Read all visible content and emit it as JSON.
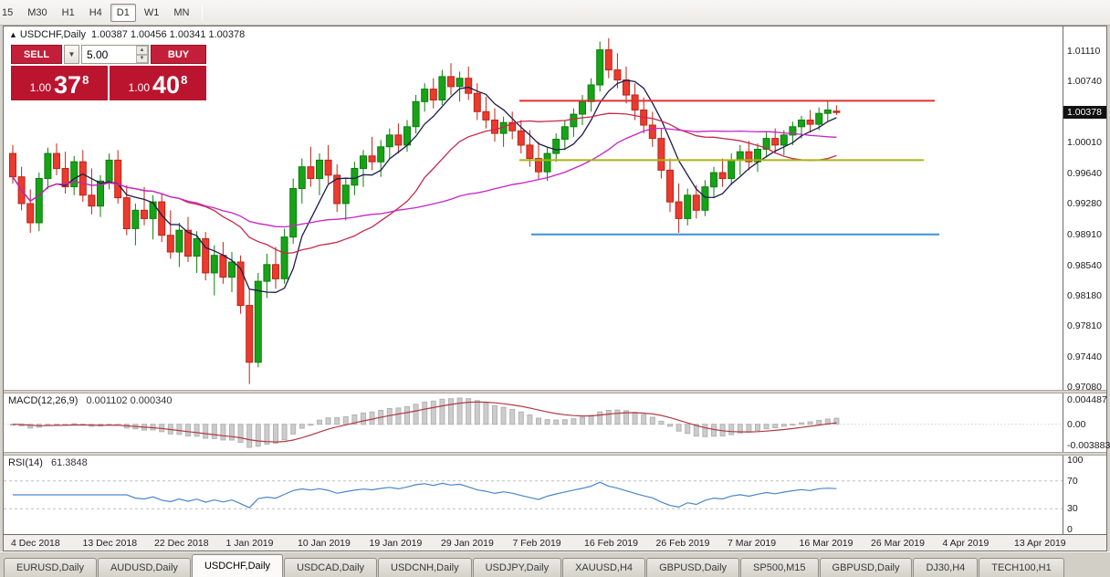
{
  "toolbar": {
    "periods": [
      {
        "label": "15",
        "active": false
      },
      {
        "label": "M30",
        "active": false
      },
      {
        "label": "H1",
        "active": false
      },
      {
        "label": "H4",
        "active": false
      },
      {
        "label": "D1",
        "active": true
      },
      {
        "label": "W1",
        "active": false
      },
      {
        "label": "MN",
        "active": false
      }
    ]
  },
  "chart": {
    "collapse_arrow": "▲",
    "symbol_title": "USDCHF,Daily",
    "ohlc_text": "1.00387 1.00456 1.00341 1.00378"
  },
  "trade_panel": {
    "sell_label": "SELL",
    "buy_label": "BUY",
    "volume": "5.00",
    "dropdown_icon": "▼",
    "spin_up": "▲",
    "spin_down": "▼",
    "button_color": "#c41f3a",
    "panel_color": "#bb142f",
    "bid": {
      "prefix": "1.00",
      "big": "37",
      "sup": "8",
      "value": "1.00378"
    },
    "ask": {
      "prefix": "1.00",
      "big": "40",
      "sup": "8",
      "value": "1.00408"
    }
  },
  "price_scale": {
    "labels": [
      "1.01110",
      "1.00740",
      "1.00370",
      "1.00010",
      "0.99640",
      "0.99280",
      "0.98910",
      "0.98540",
      "0.98180",
      "0.97810",
      "0.97440",
      "0.97080"
    ],
    "current": "1.00378",
    "current_value": 1.00378
  },
  "chart_data": {
    "type": "candlestick",
    "title": "USDCHF,Daily",
    "ohlc_display": {
      "open": "1.00387",
      "high": "1.00456",
      "low": "1.00341",
      "close": "1.00378"
    },
    "ylim": [
      0.9705,
      1.014
    ],
    "colors": {
      "up": "#17a317",
      "up_border": "#0d7e0d",
      "down": "#ea3b2e",
      "down_border": "#bc2418"
    },
    "candles": [
      [
        0.9988,
        0.9998,
        0.9952,
        0.996
      ],
      [
        0.996,
        0.9972,
        0.992,
        0.9928
      ],
      [
        0.9928,
        0.9945,
        0.9893,
        0.9905
      ],
      [
        0.9905,
        0.9965,
        0.9895,
        0.9958
      ],
      [
        0.9958,
        0.9995,
        0.9945,
        0.9988
      ],
      [
        0.9988,
        1.0,
        0.9962,
        0.997
      ],
      [
        0.997,
        0.999,
        0.994,
        0.9948
      ],
      [
        0.9948,
        0.9985,
        0.9938,
        0.9978
      ],
      [
        0.9978,
        0.9992,
        0.993,
        0.9938
      ],
      [
        0.9938,
        0.997,
        0.9915,
        0.9925
      ],
      [
        0.9925,
        0.9962,
        0.9912,
        0.9955
      ],
      [
        0.9955,
        0.9988,
        0.9945,
        0.998
      ],
      [
        0.998,
        0.9992,
        0.9928,
        0.9935
      ],
      [
        0.9935,
        0.995,
        0.989,
        0.9898
      ],
      [
        0.9898,
        0.9928,
        0.9878,
        0.992
      ],
      [
        0.992,
        0.9948,
        0.9902,
        0.991
      ],
      [
        0.991,
        0.9938,
        0.9885,
        0.993
      ],
      [
        0.993,
        0.994,
        0.9882,
        0.989
      ],
      [
        0.989,
        0.992,
        0.9862,
        0.987
      ],
      [
        0.987,
        0.9905,
        0.9852,
        0.9896
      ],
      [
        0.9896,
        0.9912,
        0.9858,
        0.9865
      ],
      [
        0.9865,
        0.9895,
        0.9845,
        0.9886
      ],
      [
        0.9886,
        0.9894,
        0.9836,
        0.9845
      ],
      [
        0.9845,
        0.9878,
        0.9818,
        0.9866
      ],
      [
        0.9866,
        0.9882,
        0.9832,
        0.984
      ],
      [
        0.984,
        0.987,
        0.9822,
        0.9858
      ],
      [
        0.9858,
        0.9866,
        0.9796,
        0.9806
      ],
      [
        0.9806,
        0.9825,
        0.9712,
        0.9738
      ],
      [
        0.9738,
        0.9845,
        0.9732,
        0.9835
      ],
      [
        0.9835,
        0.9868,
        0.9815,
        0.9855
      ],
      [
        0.9855,
        0.9876,
        0.9826,
        0.9838
      ],
      [
        0.9838,
        0.9898,
        0.9832,
        0.9888
      ],
      [
        0.9888,
        0.9958,
        0.988,
        0.9946
      ],
      [
        0.9946,
        0.9982,
        0.9928,
        0.9972
      ],
      [
        0.9972,
        0.9996,
        0.9948,
        0.9958
      ],
      [
        0.9958,
        0.9988,
        0.9938,
        0.998
      ],
      [
        0.998,
        0.9998,
        0.9952,
        0.9962
      ],
      [
        0.9962,
        0.9975,
        0.9918,
        0.9928
      ],
      [
        0.9928,
        0.9958,
        0.9908,
        0.995
      ],
      [
        0.995,
        0.9978,
        0.9938,
        0.997
      ],
      [
        0.997,
        0.9992,
        0.9948,
        0.9985
      ],
      [
        0.9985,
        1.0008,
        0.9968,
        0.9978
      ],
      [
        0.9978,
        1.0004,
        0.996,
        0.9996
      ],
      [
        0.9996,
        1.0018,
        0.9982,
        1.001
      ],
      [
        1.001,
        1.0024,
        0.9988,
        0.9998
      ],
      [
        0.9998,
        1.0028,
        0.999,
        1.002
      ],
      [
        1.002,
        1.0058,
        1.0012,
        1.005
      ],
      [
        1.005,
        1.0072,
        1.0038,
        1.0065
      ],
      [
        1.0065,
        1.0078,
        1.0042,
        1.0052
      ],
      [
        1.0052,
        1.0088,
        1.0046,
        1.008
      ],
      [
        1.008,
        1.0096,
        1.0058,
        1.0068
      ],
      [
        1.0068,
        1.0086,
        1.005,
        1.0078
      ],
      [
        1.0078,
        1.0092,
        1.0052,
        1.006
      ],
      [
        1.006,
        1.0072,
        1.0028,
        1.0038
      ],
      [
        1.0038,
        1.0056,
        1.0018,
        1.0028
      ],
      [
        1.0028,
        1.0042,
        1.0002,
        1.0012
      ],
      [
        1.0012,
        1.0032,
        0.9996,
        1.0025
      ],
      [
        1.0025,
        1.0038,
        1.0005,
        1.0015
      ],
      [
        1.0015,
        1.0028,
        0.9988,
        0.9998
      ],
      [
        0.9998,
        1.0016,
        0.9972,
        0.9982
      ],
      [
        0.9982,
        1.0002,
        0.9956,
        0.9966
      ],
      [
        0.9966,
        0.9996,
        0.9955,
        0.9988
      ],
      [
        0.9988,
        1.0012,
        0.9978,
        1.0005
      ],
      [
        1.0005,
        1.0028,
        0.9992,
        1.002
      ],
      [
        1.002,
        1.0042,
        1.0008,
        1.0035
      ],
      [
        1.0035,
        1.0058,
        1.0022,
        1.005
      ],
      [
        1.005,
        1.0078,
        1.0038,
        1.007
      ],
      [
        1.007,
        1.0122,
        1.0062,
        1.0112
      ],
      [
        1.0112,
        1.0126,
        1.0078,
        1.0088
      ],
      [
        1.0088,
        1.0108,
        1.0066,
        1.0076
      ],
      [
        1.0076,
        1.0092,
        1.0048,
        1.0058
      ],
      [
        1.0058,
        1.0072,
        1.0028,
        1.004
      ],
      [
        1.004,
        1.0055,
        1.0012,
        1.0022
      ],
      [
        1.0022,
        1.0038,
        0.9996,
        1.0006
      ],
      [
        1.0006,
        1.0018,
        0.9958,
        0.9968
      ],
      [
        0.9968,
        0.9982,
        0.9918,
        0.993
      ],
      [
        0.993,
        0.9952,
        0.9893,
        0.991
      ],
      [
        0.991,
        0.9946,
        0.9902,
        0.9938
      ],
      [
        0.9938,
        0.995,
        0.991,
        0.992
      ],
      [
        0.992,
        0.9956,
        0.9913,
        0.9948
      ],
      [
        0.9948,
        0.9972,
        0.9936,
        0.9965
      ],
      [
        0.9965,
        0.9982,
        0.9948,
        0.9958
      ],
      [
        0.9958,
        0.9988,
        0.995,
        0.998
      ],
      [
        0.998,
        0.9998,
        0.9962,
        0.999
      ],
      [
        0.999,
        1.0003,
        0.9968,
        0.9978
      ],
      [
        0.9978,
        1.0,
        0.9966,
        0.9993
      ],
      [
        0.9993,
        1.0013,
        0.9983,
        1.0006
      ],
      [
        1.0006,
        1.0018,
        0.9988,
        0.9998
      ],
      [
        0.9998,
        1.0016,
        0.9986,
        1.001
      ],
      [
        1.001,
        1.0026,
        0.9998,
        1.002
      ],
      [
        1.002,
        1.0033,
        1.0006,
        1.0028
      ],
      [
        1.0028,
        1.004,
        1.0013,
        1.0023
      ],
      [
        1.0023,
        1.0043,
        1.0016,
        1.0036
      ],
      [
        1.0036,
        1.0052,
        1.0026,
        1.004
      ],
      [
        1.00387,
        1.00456,
        1.00341,
        1.00378
      ]
    ],
    "moving_averages": [
      {
        "period": 6,
        "color": "#1b1b4f"
      },
      {
        "period": 20,
        "color": "#c7294a"
      },
      {
        "period": 42,
        "color": "#c624c6"
      }
    ],
    "hlines": [
      {
        "price": 1.0051,
        "color": "#e03131",
        "from": 0.487,
        "to": 0.879
      },
      {
        "price": 0.998,
        "color": "#aab414",
        "from": 0.487,
        "to": 0.869
      },
      {
        "price": 0.9891,
        "color": "#3f8fd6",
        "from": 0.498,
        "to": 0.884
      }
    ],
    "indicators": {
      "macd": {
        "label": "MACD(12,26,9)",
        "values_text": "0.001102 0.000340",
        "main": 0.001102,
        "signal": 0.00034,
        "scale_labels": [
          "0.004487",
          "0.00",
          "-0.003883"
        ],
        "hist_color": "#cccccc",
        "hist_border": "#b3b3b3",
        "signal_color": "#b03a45"
      },
      "rsi": {
        "label": "RSI(14)",
        "value_text": "61.3848",
        "value": 61.3848,
        "levels": [
          70,
          30
        ],
        "scale_labels": [
          "100",
          "70",
          "30",
          "0"
        ],
        "color": "#4a86c9"
      }
    },
    "x_labels": [
      "4 Dec 2018",
      "13 Dec 2018",
      "22 Dec 2018",
      "1 Jan 2019",
      "10 Jan 2019",
      "19 Jan 2019",
      "29 Jan 2019",
      "7 Feb 2019",
      "16 Feb 2019",
      "26 Feb 2019",
      "7 Mar 2019",
      "16 Mar 2019",
      "26 Mar 2019",
      "4 Apr 2019",
      "13 Apr 2019"
    ]
  },
  "tabs": [
    {
      "label": "EURUSD,Daily",
      "active": false
    },
    {
      "label": "AUDUSD,Daily",
      "active": false
    },
    {
      "label": "USDCHF,Daily",
      "active": true
    },
    {
      "label": "USDCAD,Daily",
      "active": false
    },
    {
      "label": "USDCNH,Daily",
      "active": false
    },
    {
      "label": "USDJPY,Daily",
      "active": false
    },
    {
      "label": "XAUUSD,H4",
      "active": false
    },
    {
      "label": "GBPUSD,Daily",
      "active": false
    },
    {
      "label": "SP500,M15",
      "active": false
    },
    {
      "label": "GBPUSD,Daily",
      "active": false
    },
    {
      "label": "DJ30,H4",
      "active": false
    },
    {
      "label": "TECH100,H1",
      "active": false
    }
  ]
}
